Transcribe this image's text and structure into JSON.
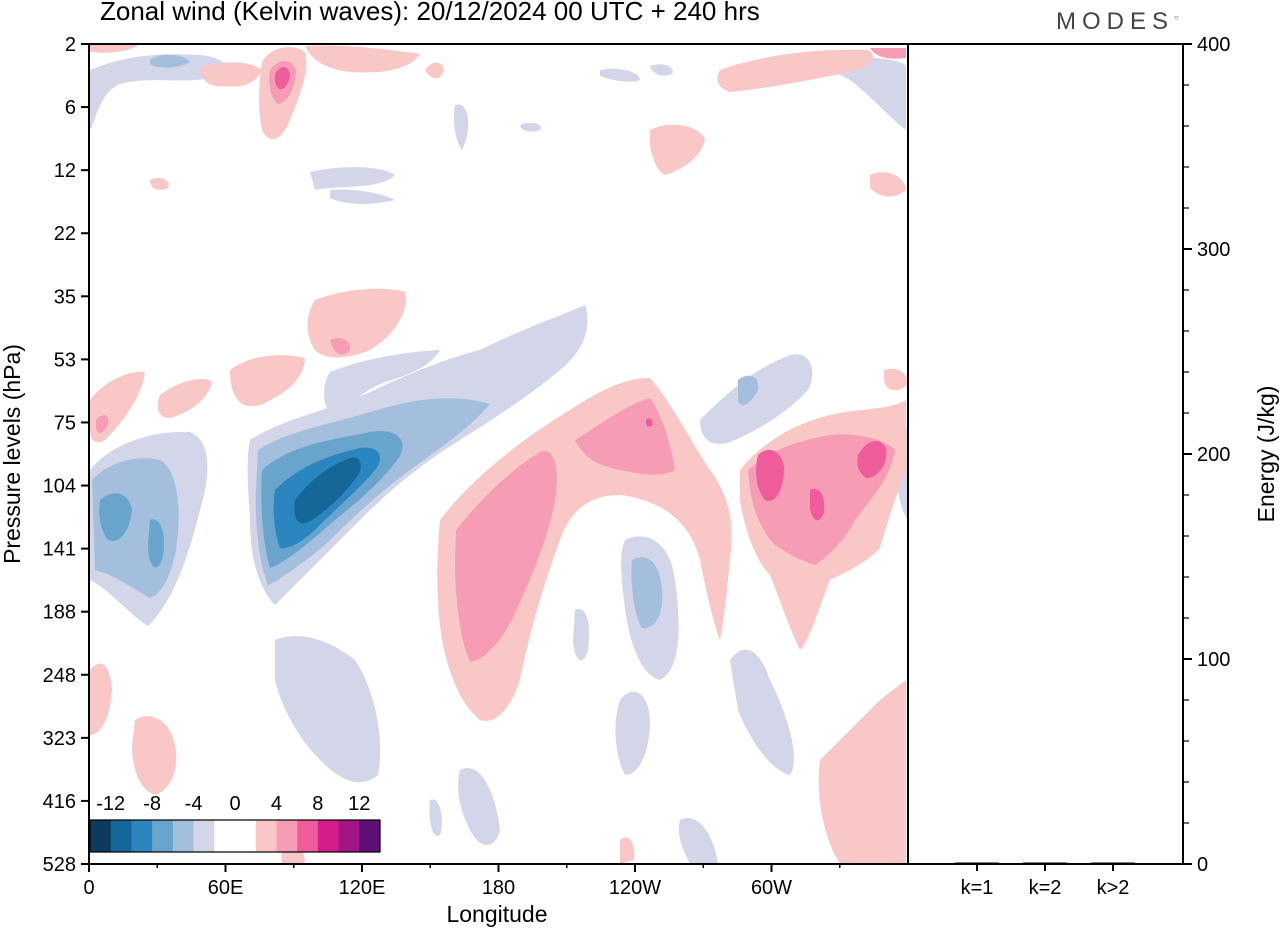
{
  "header": {
    "title": "Zonal wind (Kelvin waves):  20/12/2024  00 UTC  + 240 hrs",
    "logo": "MODES"
  },
  "chart_data": [
    {
      "type": "heatmap",
      "title": "Zonal wind (Kelvin waves):  20/12/2024  00 UTC  + 240 hrs",
      "xlabel": "Longitude",
      "ylabel": "Pressure levels (hPa)",
      "x_ticks": [
        "0",
        "60E",
        "120E",
        "180",
        "120W",
        "60W"
      ],
      "y_ticks": [
        "2",
        "6",
        "12",
        "22",
        "35",
        "53",
        "75",
        "104",
        "141",
        "188",
        "248",
        "323",
        "416",
        "528"
      ],
      "y_scale": "log",
      "colorbar": {
        "labels": [
          "-12",
          "-8",
          "-4",
          "0",
          "4",
          "8",
          "12"
        ],
        "colors": [
          "#0d3b5e",
          "#15679a",
          "#2b86bf",
          "#68a4cc",
          "#a4bedd",
          "#d2d6e8",
          "#ffffff",
          "#ffffff",
          "#f9c8c6",
          "#f79cb5",
          "#ee5c9c",
          "#d61b8b",
          "#a11588",
          "#5e0f73"
        ]
      },
      "features": [
        {
          "name": "easterly band 60E-130E",
          "sign": "negative",
          "min": -14,
          "lon_range": [
            "60E",
            "130E"
          ],
          "p_range": [
            70,
            220
          ]
        },
        {
          "name": "easterly band 0-40E",
          "sign": "negative",
          "min": -8,
          "lon_range": [
            "0",
            "40E"
          ],
          "p_range": [
            80,
            200
          ]
        },
        {
          "name": "westerly band 180-130W",
          "sign": "positive",
          "max": 8,
          "lon_range": [
            "180",
            "130W"
          ],
          "p_range": [
            60,
            300
          ]
        },
        {
          "name": "westerly band 70W-10W",
          "sign": "positive",
          "max": 8,
          "lon_range": [
            "70W",
            "10W"
          ],
          "p_range": [
            60,
            220
          ]
        },
        {
          "name": "westerly 90E stratosphere",
          "sign": "positive",
          "max": 8,
          "lon_range": [
            "80E",
            "90E"
          ],
          "p_range": [
            3,
            8
          ]
        }
      ]
    },
    {
      "type": "bar",
      "ylabel": "Energy (J/kg)",
      "categories": [
        "k=1",
        "k=2",
        "k>2"
      ],
      "values": [
        0.3,
        0.3,
        0.5
      ],
      "ylim": [
        0,
        400
      ],
      "y_ticks": [
        "0",
        "100",
        "200",
        "300",
        "400"
      ]
    }
  ]
}
